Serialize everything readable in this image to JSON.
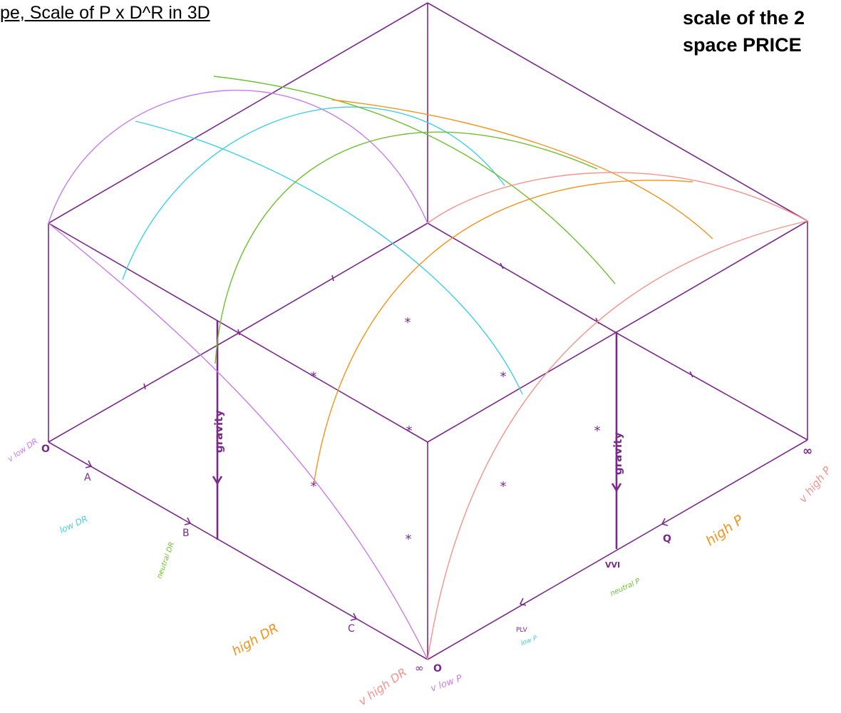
{
  "title": "pe, Scale of P x D^R in 3D",
  "side_title": {
    "line1": "scale of the 2",
    "line2": "space PRICE"
  },
  "colors": {
    "frame": "#7b2a8c",
    "v_low": "#c77cf0",
    "low": "#3fd0e8",
    "neutral": "#6ec030",
    "high": "#f5931c",
    "v_high": "#f5938c"
  },
  "axis_letters": {
    "a": "A",
    "b": "B",
    "c": "C",
    "q": "Q"
  },
  "origin_labels": {
    "left_zero": "O",
    "center_zero": "O",
    "center_inf": "∞",
    "right_inf": "∞"
  },
  "dr_labels": {
    "v_low": "v low DR",
    "low": "low DR",
    "neutral": "neutral DR",
    "high": "high DR",
    "v_high": "v high DR"
  },
  "p_labels": {
    "v_low": "v low P",
    "low": "low P",
    "neutral": "neutral P",
    "high": "high P",
    "v_high": "v high P"
  },
  "right_axis_text": {
    "plv": "PLV",
    "vvi": "VVI"
  },
  "gravity_label": "gravity",
  "star_glyph": "*"
}
